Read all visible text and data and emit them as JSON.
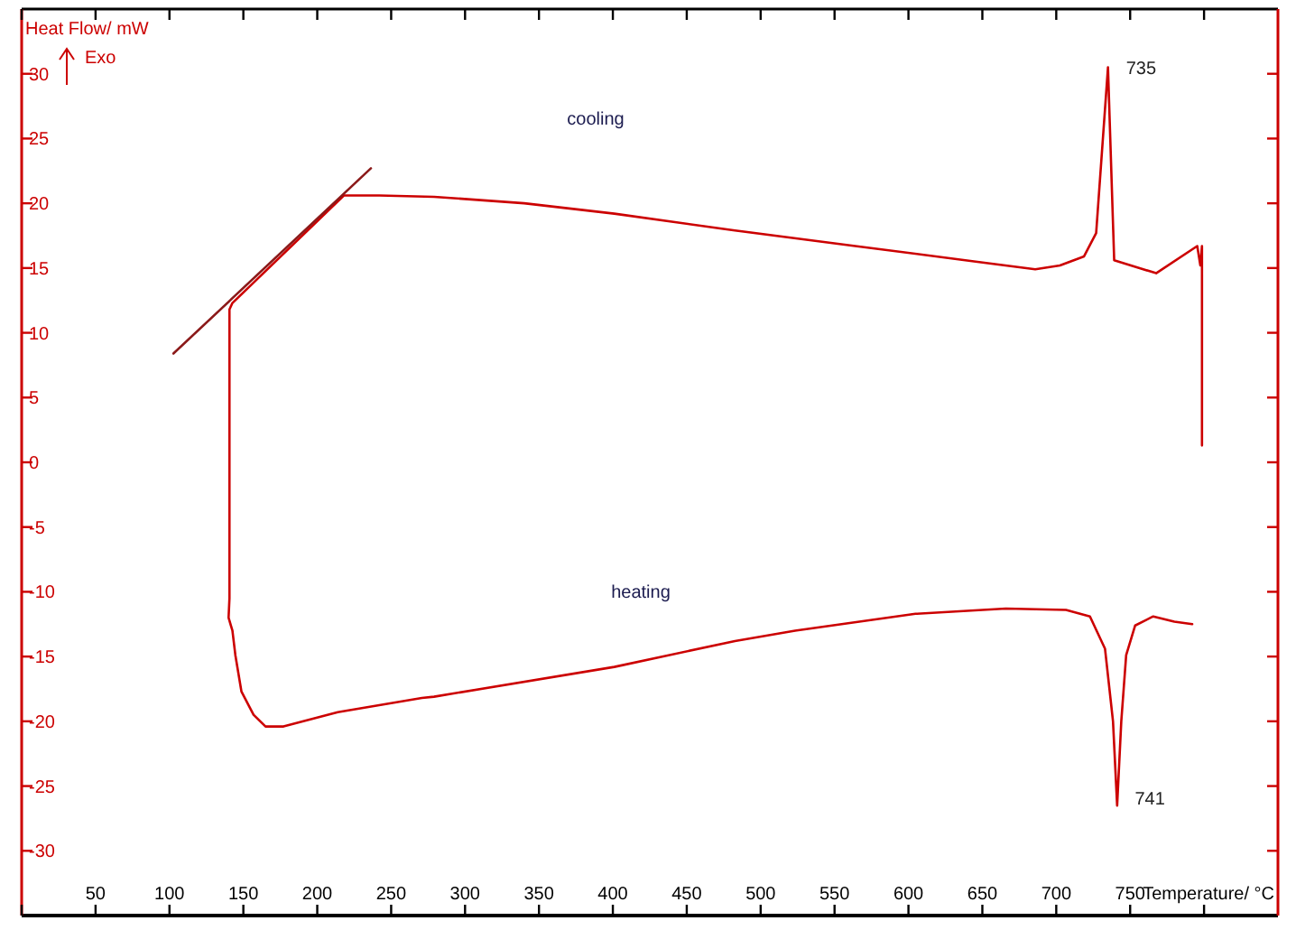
{
  "chart_data": {
    "type": "line",
    "xlabel": "Temperature/ °C",
    "ylabel": "Heat Flow/ mW",
    "xlim": [
      0,
      850
    ],
    "ylim": [
      -35,
      35
    ],
    "xticks": [
      {
        "value": 0,
        "label": null
      },
      50,
      100,
      150,
      200,
      250,
      300,
      350,
      400,
      450,
      500,
      550,
      600,
      650,
      700,
      750,
      {
        "value": 800,
        "label": null
      }
    ],
    "yticks": [
      -30,
      -25,
      -20,
      -15,
      -10,
      -5,
      0,
      5,
      10,
      15,
      20,
      25,
      30
    ],
    "grid": false,
    "marker": "none",
    "line_style": "solid",
    "series": [
      {
        "color": "#cc0000",
        "x": [
          798.6,
          798.6,
          797.5,
          795.4,
          767.6,
          739.2,
          735,
          727,
          718.8,
          702.5,
          685.8,
          645.5,
          564,
          482.6,
          401,
          340,
          279,
          242,
          218,
          142.6,
          140.6,
          140.6,
          140.0,
          142.6,
          144.6,
          148.7,
          156.9,
          165,
          177.2,
          213.9,
          270.8,
          279,
          401,
          482.6,
          523.3,
          604.8,
          665.9,
          706.6,
          722.8,
          733,
          738.4,
          741.2,
          744,
          747.3,
          753.4,
          765.6,
          779.9,
          792
        ],
        "values": [
          1.3,
          16.7,
          15.2,
          16.7,
          14.6,
          15.6,
          30.5,
          17.7,
          15.9,
          15.2,
          14.9,
          15.5,
          16.7,
          17.9,
          19.2,
          20.0,
          20.5,
          20.6,
          20.6,
          12.3,
          11.8,
          -10.5,
          -12.0,
          -13.0,
          -14.9,
          -17.7,
          -19.5,
          -20.4,
          -20.4,
          -19.3,
          -18.2,
          -18.1,
          -15.8,
          -13.8,
          -13.0,
          -11.7,
          -11.3,
          -11.4,
          -11.9,
          -14.4,
          -20.0,
          -26.5,
          -20.0,
          -14.9,
          -12.6,
          -11.9,
          -12.3,
          -12.5
        ]
      },
      {
        "type": "line",
        "color": "#8b1a1a",
        "x": [
          102.7,
          236.3
        ],
        "values": [
          8.4,
          22.7
        ]
      }
    ],
    "annotations": [
      "Exo",
      "cooling",
      "heating",
      {
        "text": "735",
        "x": 735,
        "y": 30.5
      },
      {
        "text": "741",
        "x": 741,
        "y": -26.5
      }
    ]
  }
}
